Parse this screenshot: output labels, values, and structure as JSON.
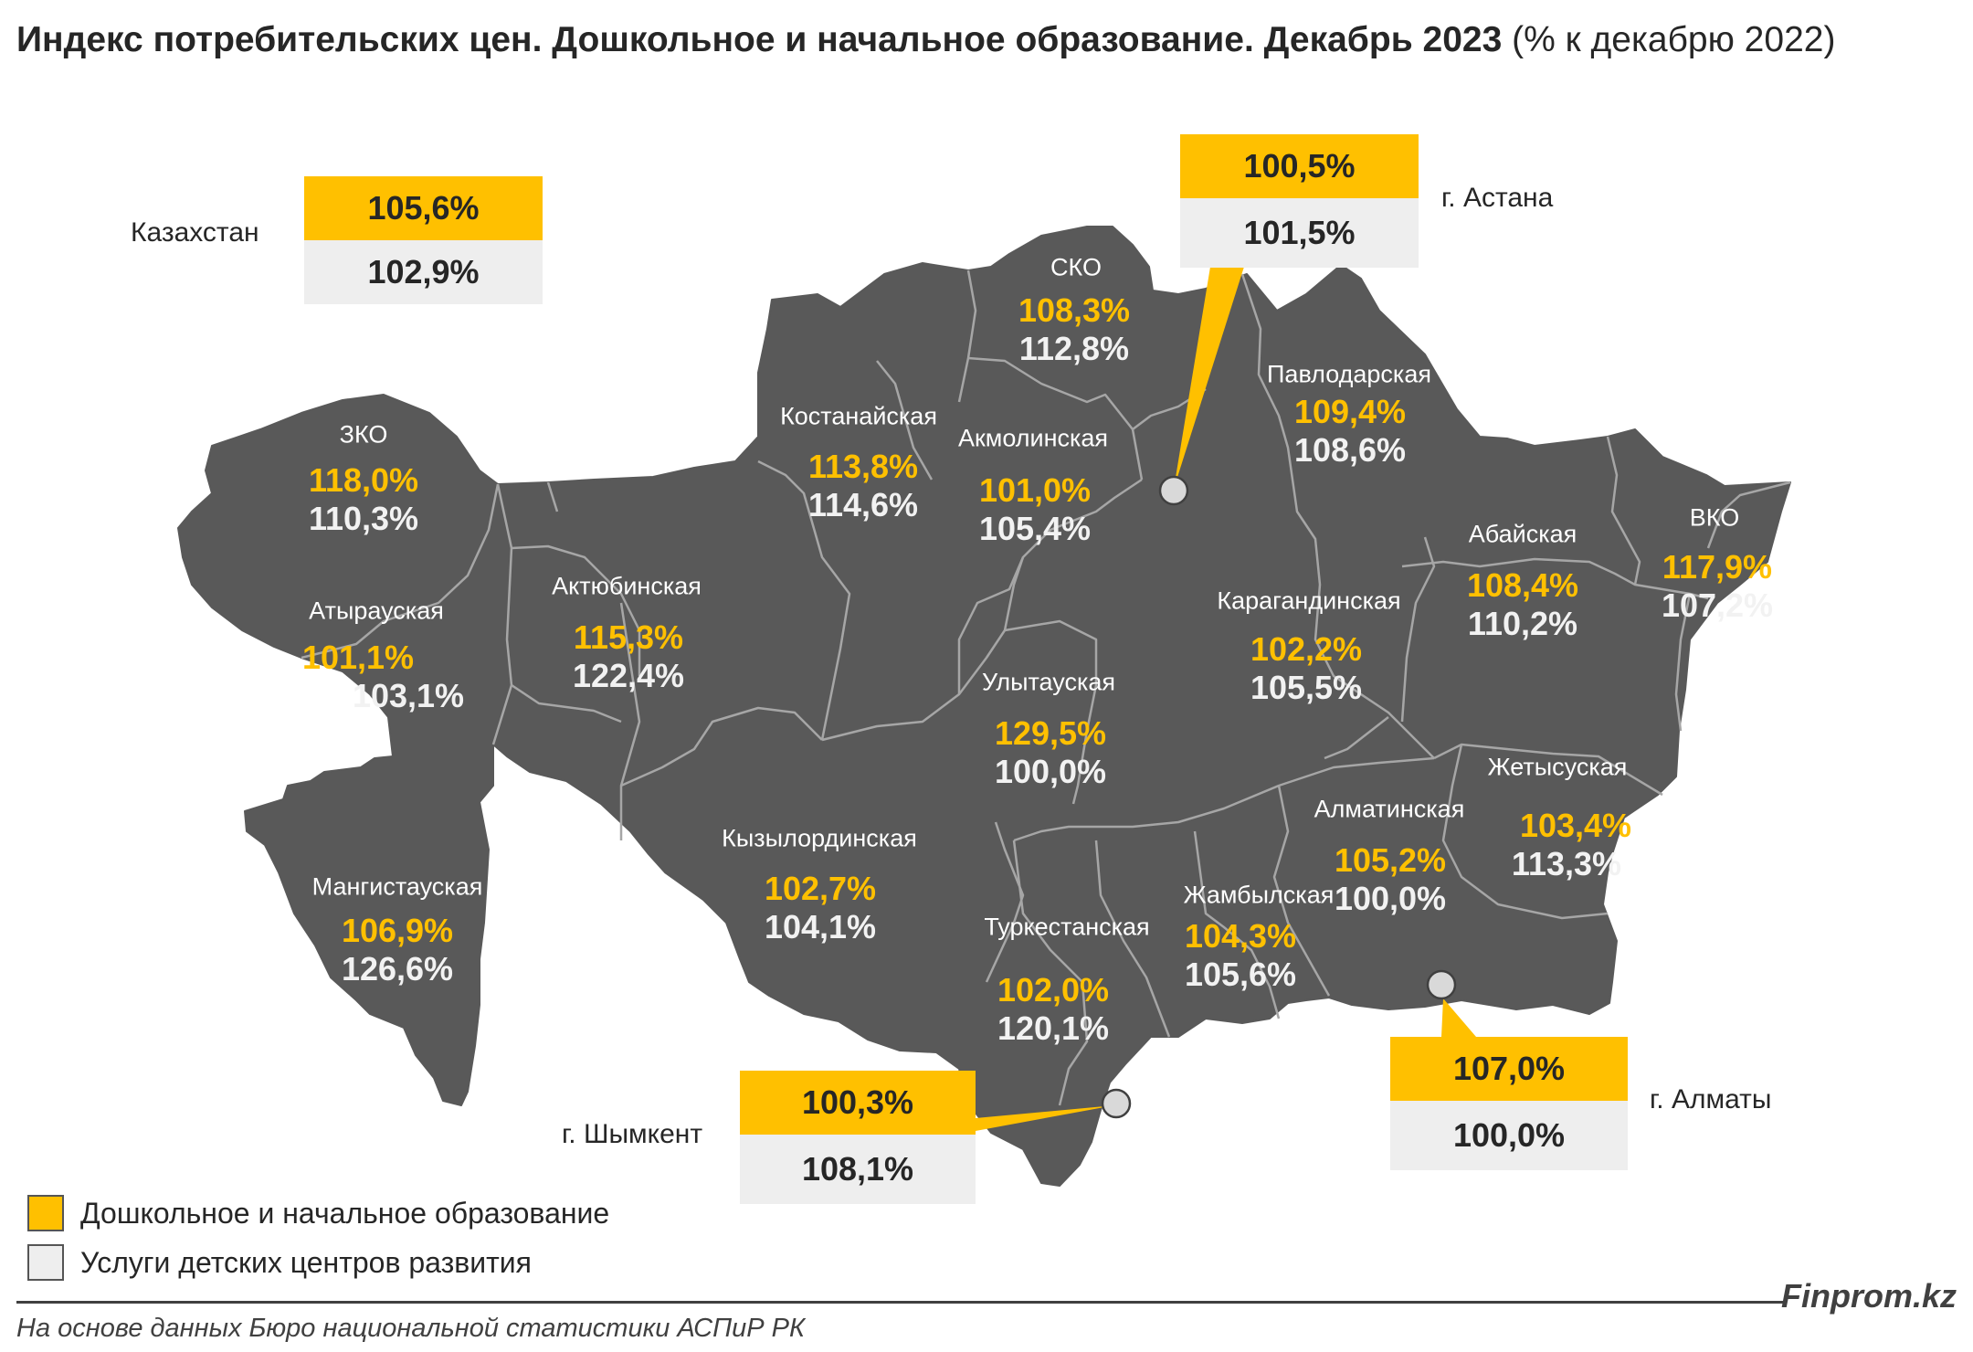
{
  "title": {
    "bold": "Индекс потребительских цен. Дошкольное и начальное образование. Декабрь 2023",
    "normal": " (% к декабрю 2022)"
  },
  "colors": {
    "map_fill": "#595959",
    "border": "#a6a6a6",
    "education": "#ffc000",
    "development": "#eeeeee"
  },
  "legend": {
    "education": "Дошкольное и начальное образование",
    "development": "Услуги детских центров развития"
  },
  "kazakhstan": {
    "label": "Казахстан",
    "education": "105,6%",
    "development": "102,9%"
  },
  "cities": {
    "astana": {
      "label": "г. Астана",
      "education": "100,5%",
      "development": "101,5%"
    },
    "almaty": {
      "label": "г. Алматы",
      "education": "107,0%",
      "development": "100,0%"
    },
    "shymkent": {
      "label": "г. Шымкент",
      "education": "100,3%",
      "development": "108,1%"
    }
  },
  "regions": [
    {
      "name": "ЗКО",
      "education": "118,0%",
      "development": "110,3%"
    },
    {
      "name": "Атырауская",
      "education": "101,1%",
      "development": "103,1%"
    },
    {
      "name": "Мангистауская",
      "education": "106,9%",
      "development": "126,6%"
    },
    {
      "name": "Актюбинская",
      "education": "115,3%",
      "development": "122,4%"
    },
    {
      "name": "Костанайская",
      "education": "113,8%",
      "development": "114,6%"
    },
    {
      "name": "СКО",
      "education": "108,3%",
      "development": "112,8%"
    },
    {
      "name": "Акмолинская",
      "education": "101,0%",
      "development": "105,4%"
    },
    {
      "name": "Павлодарская",
      "education": "109,4%",
      "development": "108,6%"
    },
    {
      "name": "Карагандинская",
      "education": "102,2%",
      "development": "105,5%"
    },
    {
      "name": "Улытауская",
      "education": "129,5%",
      "development": "100,0%"
    },
    {
      "name": "Кызылординская",
      "education": "102,7%",
      "development": "104,1%"
    },
    {
      "name": "Туркестанская",
      "education": "102,0%",
      "development": "120,1%"
    },
    {
      "name": "Жамбылская",
      "education": "104,3%",
      "development": "105,6%"
    },
    {
      "name": "Алматинская",
      "education": "105,2%",
      "development": "100,0%"
    },
    {
      "name": "Жетысуская",
      "education": "103,4%",
      "development": "113,3%"
    },
    {
      "name": "Абайская",
      "education": "108,4%",
      "development": "110,2%"
    },
    {
      "name": "ВКО",
      "education": "117,9%",
      "development": "107,2%"
    }
  ],
  "brand": "Finprom.kz",
  "source": "На основе данных Бюро национальной статистики АСПиР РК"
}
